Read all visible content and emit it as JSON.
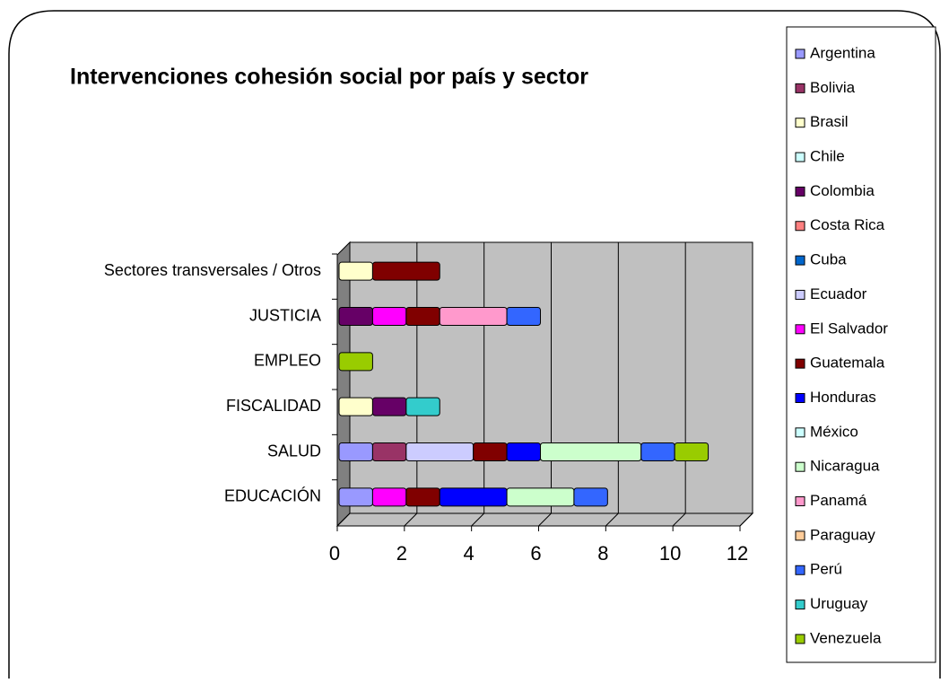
{
  "chart_data": {
    "type": "stacked-bar-horizontal-3d",
    "title": "Intervenciones cohesión social por país y sector",
    "categories": [
      "EDUCACIÓN",
      "SALUD",
      "FISCALIDAD",
      "EMPLEO",
      "JUSTICIA",
      "Sectores transversales / Otros"
    ],
    "series": [
      {
        "name": "Argentina",
        "color": "#9999ff",
        "values": [
          1,
          1,
          0,
          0,
          0,
          0
        ]
      },
      {
        "name": "Bolivia",
        "color": "#993366",
        "values": [
          0,
          1,
          0,
          0,
          0,
          0
        ]
      },
      {
        "name": "Brasil",
        "color": "#ffffcc",
        "values": [
          0,
          0,
          1,
          0,
          0,
          1
        ]
      },
      {
        "name": "Chile",
        "color": "#ccffff",
        "values": [
          0,
          0,
          0,
          0,
          0,
          0
        ]
      },
      {
        "name": "Colombia",
        "color": "#660066",
        "values": [
          0,
          0,
          1,
          0,
          1,
          0
        ]
      },
      {
        "name": "Costa Rica",
        "color": "#ff8080",
        "values": [
          0,
          0,
          0,
          0,
          0,
          0
        ]
      },
      {
        "name": "Cuba",
        "color": "#0066cc",
        "values": [
          0,
          0,
          0,
          0,
          0,
          0
        ]
      },
      {
        "name": "Ecuador",
        "color": "#ccccff",
        "values": [
          0,
          2,
          0,
          0,
          0,
          0
        ]
      },
      {
        "name": "El Salvador",
        "color": "#ff00ff",
        "values": [
          1,
          0,
          0,
          0,
          1,
          0
        ]
      },
      {
        "name": "Guatemala",
        "color": "#800000",
        "values": [
          1,
          1,
          0,
          0,
          1,
          2
        ]
      },
      {
        "name": "Honduras",
        "color": "#0000ff",
        "values": [
          2,
          1,
          0,
          0,
          0,
          0
        ]
      },
      {
        "name": "México",
        "color": "#ccffff",
        "values": [
          0,
          0,
          0,
          0,
          0,
          0
        ]
      },
      {
        "name": "Nicaragua",
        "color": "#ccffcc",
        "values": [
          2,
          3,
          0,
          0,
          0,
          0
        ]
      },
      {
        "name": "Panamá",
        "color": "#ff99cc",
        "values": [
          0,
          0,
          0,
          0,
          2,
          0
        ]
      },
      {
        "name": "Paraguay",
        "color": "#ffcc99",
        "values": [
          0,
          0,
          0,
          0,
          0,
          0
        ]
      },
      {
        "name": "Perú",
        "color": "#3366ff",
        "values": [
          1,
          1,
          0,
          0,
          1,
          0
        ]
      },
      {
        "name": "Uruguay",
        "color": "#33cccc",
        "values": [
          0,
          0,
          1,
          0,
          0,
          0
        ]
      },
      {
        "name": "Venezuela",
        "color": "#99cc00",
        "values": [
          0,
          1,
          0,
          1,
          0,
          0
        ]
      }
    ],
    "xlim": [
      0,
      12
    ],
    "xticks": [
      0,
      2,
      4,
      6,
      8,
      10,
      12
    ],
    "grid": true,
    "legend": "right"
  }
}
